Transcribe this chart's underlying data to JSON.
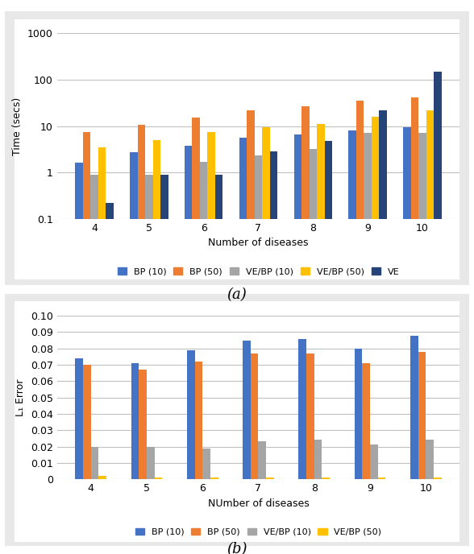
{
  "chart_a": {
    "xlabel": "Number of diseases",
    "ylabel": "Time (secs)",
    "categories": [
      4,
      5,
      6,
      7,
      8,
      9,
      10
    ],
    "series": {
      "BP (10)": [
        1.6,
        2.7,
        3.8,
        5.5,
        6.5,
        8.0,
        9.5
      ],
      "BP (50)": [
        7.5,
        10.5,
        15.0,
        22.0,
        27.0,
        35.0,
        42.0
      ],
      "VE/BP (10)": [
        0.9,
        0.9,
        1.7,
        2.3,
        3.2,
        7.0,
        7.0
      ],
      "VE/BP (50)": [
        3.5,
        5.0,
        7.5,
        9.5,
        11.0,
        16.0,
        22.0
      ],
      "VE": [
        0.22,
        0.9,
        0.9,
        2.8,
        4.8,
        22.0,
        150.0
      ]
    },
    "colors": {
      "BP (10)": "#4472C4",
      "BP (50)": "#ED7D31",
      "VE/BP (10)": "#A5A5A5",
      "VE/BP (50)": "#FFC000",
      "VE": "#264478"
    },
    "ylim": [
      0.1,
      1000
    ],
    "yticks": [
      0.1,
      1,
      10,
      100,
      1000
    ]
  },
  "chart_b": {
    "xlabel": "NUmber of diseases",
    "ylabel": "L₁ Error",
    "categories": [
      4,
      5,
      6,
      7,
      8,
      9,
      10
    ],
    "series": {
      "BP (10)": [
        0.074,
        0.071,
        0.079,
        0.085,
        0.086,
        0.08,
        0.088
      ],
      "BP (50)": [
        0.07,
        0.067,
        0.072,
        0.077,
        0.077,
        0.071,
        0.078
      ],
      "VE/BP (10)": [
        0.02,
        0.02,
        0.019,
        0.023,
        0.024,
        0.021,
        0.024
      ],
      "VE/BP (50)": [
        0.002,
        0.001,
        0.001,
        0.001,
        0.001,
        0.001,
        0.001
      ]
    },
    "colors": {
      "BP (10)": "#4472C4",
      "BP (50)": "#ED7D31",
      "VE/BP (10)": "#A5A5A5",
      "VE/BP (50)": "#FFC000"
    },
    "ylim": [
      0,
      0.1
    ],
    "yticks": [
      0,
      0.01,
      0.02,
      0.03,
      0.04,
      0.05,
      0.06,
      0.07,
      0.08,
      0.09,
      0.1
    ]
  },
  "figure": {
    "bg_color": "#FFFFFF",
    "panel_bg_color": "#FFFFFF",
    "outer_bg_color": "#E8E8E8",
    "grid_color": "#C0C0C0",
    "bar_width": 0.14,
    "figsize": [
      5.88,
      6.88
    ],
    "dpi": 100
  }
}
